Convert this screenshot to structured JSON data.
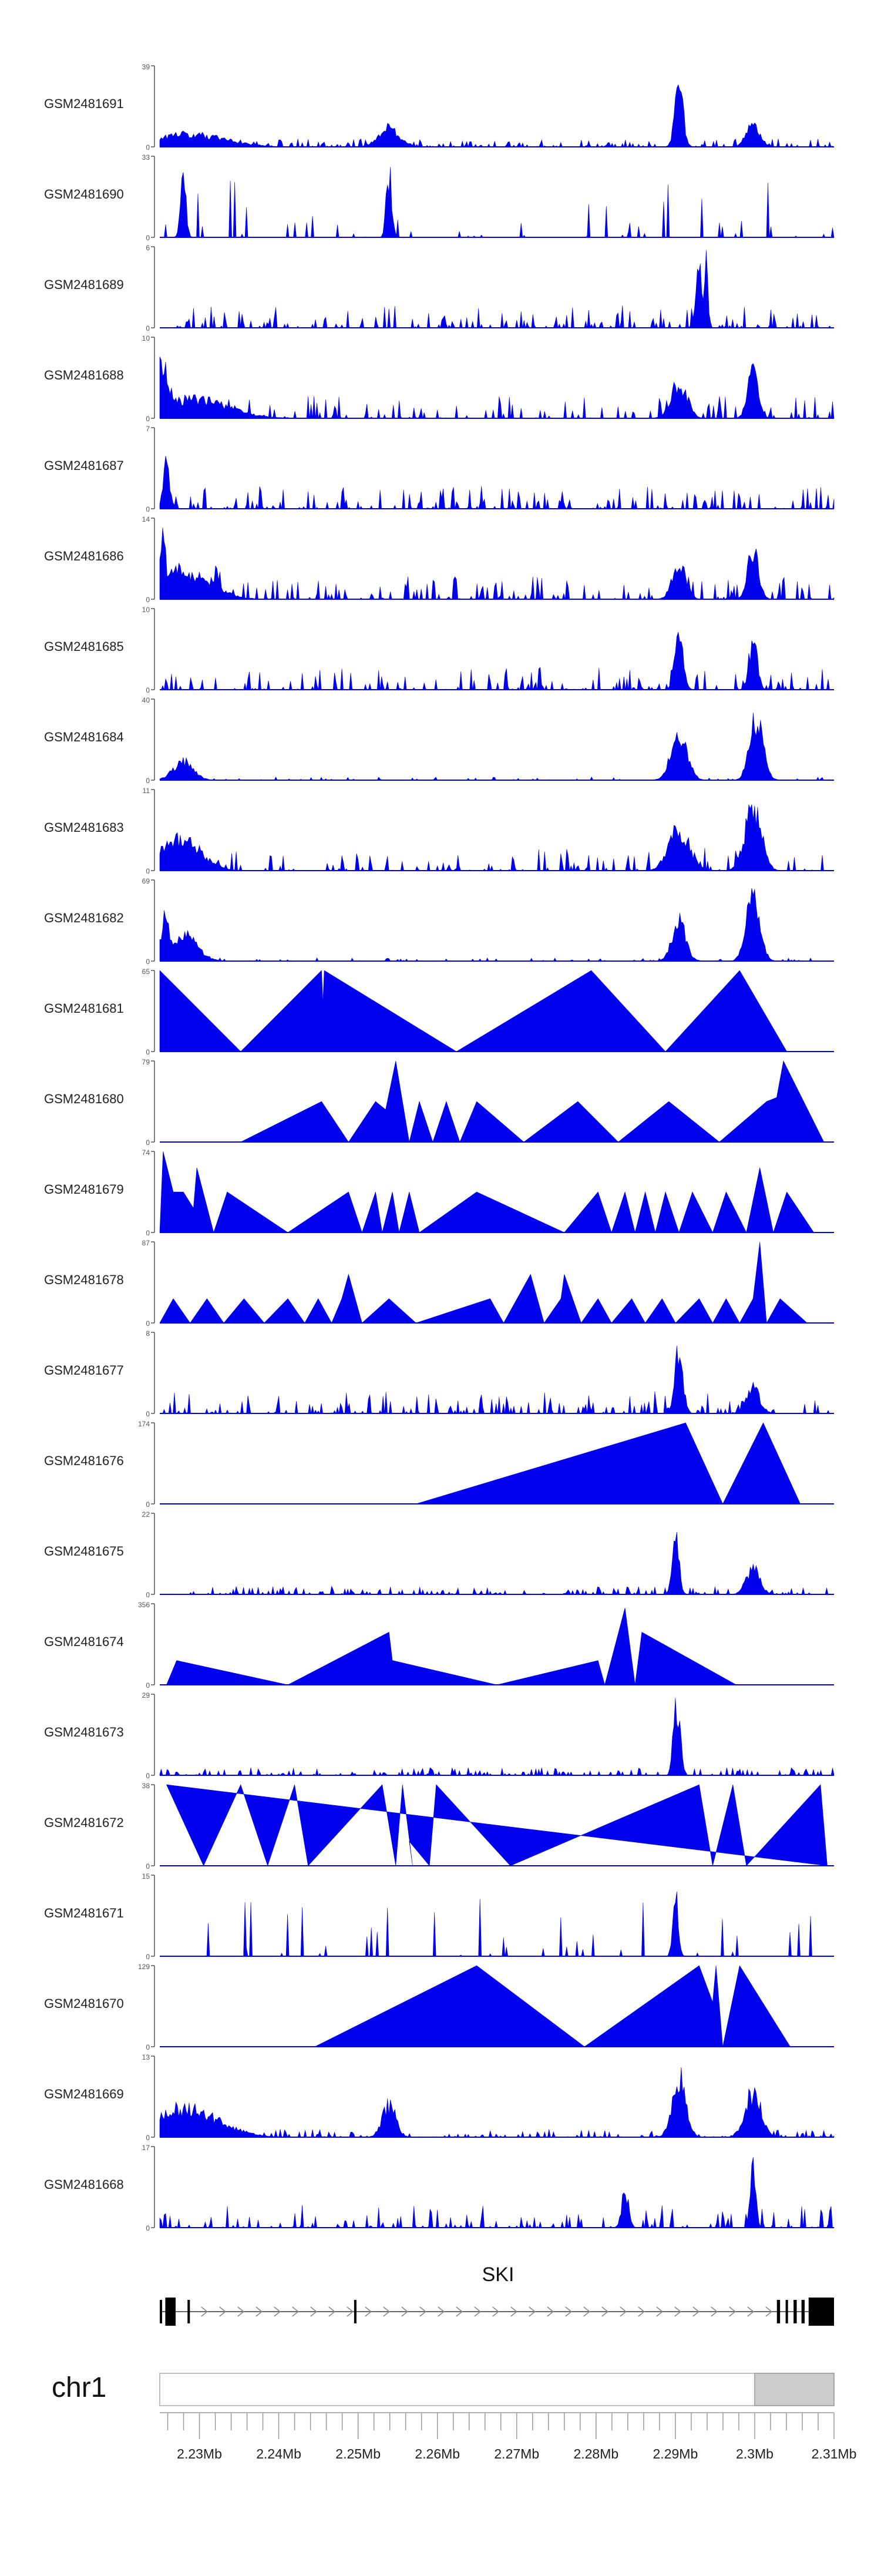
{
  "genome": {
    "chromosome": "chr1",
    "region_start_mb": 2.225,
    "region_end_mb": 2.31,
    "highlight_start_mb": 2.3,
    "highlight_end_mb": 2.31,
    "tick_labels": [
      {
        "mb": 2.23,
        "label": "2.23Mb"
      },
      {
        "mb": 2.24,
        "label": "2.24Mb"
      },
      {
        "mb": 2.25,
        "label": "2.25Mb"
      },
      {
        "mb": 2.26,
        "label": "2.26Mb"
      },
      {
        "mb": 2.27,
        "label": "2.27Mb"
      },
      {
        "mb": 2.28,
        "label": "2.28Mb"
      },
      {
        "mb": 2.29,
        "label": "2.29Mb"
      },
      {
        "mb": 2.3,
        "label": "2.3Mb"
      },
      {
        "mb": 2.31,
        "label": "2.31Mb"
      }
    ]
  },
  "gene": {
    "name": "SKI",
    "start_mb": 2.225,
    "end_mb": 2.31,
    "strand": "+",
    "exons_mb": [
      [
        2.225,
        2.2253
      ],
      [
        2.2257,
        2.227
      ],
      [
        2.2285,
        2.2288
      ],
      [
        2.2495,
        2.2497
      ],
      [
        2.3028,
        2.3032
      ],
      [
        2.3039,
        2.3042
      ],
      [
        2.3049,
        2.3053
      ],
      [
        2.3059,
        2.3063
      ],
      [
        2.3068,
        2.31
      ]
    ]
  },
  "colors": {
    "signal": "#0000ee",
    "axis": "#555555",
    "text": "#222222",
    "highlight": "#cccccc",
    "gene": "#000000"
  },
  "tracks": [
    {
      "name": "GSM2481691",
      "ymax": "39",
      "kind": "dense",
      "seed": 11,
      "peaks": [
        [
          0.045,
          0.2,
          0.05
        ],
        [
          0.34,
          0.3,
          0.015
        ],
        [
          0.77,
          1.0,
          0.006
        ],
        [
          0.88,
          0.35,
          0.01
        ]
      ]
    },
    {
      "name": "GSM2481690",
      "ymax": "33",
      "kind": "sparse",
      "seed": 12,
      "peaks": [
        [
          0.035,
          0.9,
          0.004
        ],
        [
          0.34,
          1.0,
          0.004
        ]
      ]
    },
    {
      "name": "GSM2481689",
      "ymax": "6",
      "kind": "medium",
      "seed": 13,
      "peaks": [
        [
          0.8,
          0.9,
          0.005
        ],
        [
          0.81,
          1.0,
          0.003
        ]
      ]
    },
    {
      "name": "GSM2481688",
      "ymax": "10",
      "kind": "medium",
      "seed": 14,
      "peaks": [
        [
          0.005,
          0.9,
          0.01
        ],
        [
          0.05,
          0.3,
          0.05
        ],
        [
          0.77,
          0.55,
          0.012
        ],
        [
          0.88,
          0.7,
          0.008
        ]
      ]
    },
    {
      "name": "GSM2481687",
      "ymax": "7",
      "kind": "medium",
      "seed": 15,
      "peaks": [
        [
          0.01,
          0.7,
          0.005
        ]
      ]
    },
    {
      "name": "GSM2481686",
      "ymax": "14",
      "kind": "medium",
      "seed": 16,
      "peaks": [
        [
          0.005,
          1.0,
          0.005
        ],
        [
          0.03,
          0.45,
          0.04
        ],
        [
          0.085,
          0.45,
          0.006
        ],
        [
          0.77,
          0.55,
          0.01
        ],
        [
          0.88,
          0.75,
          0.008
        ]
      ]
    },
    {
      "name": "GSM2481685",
      "ymax": "10",
      "kind": "medium",
      "seed": 17,
      "peaks": [
        [
          0.77,
          1.0,
          0.006
        ],
        [
          0.88,
          0.8,
          0.006
        ]
      ]
    },
    {
      "name": "GSM2481684",
      "ymax": "40",
      "kind": "quiet",
      "seed": 18,
      "peaks": [
        [
          0.035,
          0.3,
          0.015
        ],
        [
          0.77,
          0.75,
          0.012
        ],
        [
          0.885,
          0.95,
          0.01
        ]
      ]
    },
    {
      "name": "GSM2481683",
      "ymax": "11",
      "kind": "medium",
      "seed": 19,
      "peaks": [
        [
          0.03,
          0.5,
          0.03
        ],
        [
          0.77,
          0.65,
          0.015
        ],
        [
          0.88,
          1.0,
          0.012
        ]
      ]
    },
    {
      "name": "GSM2481682",
      "ymax": "69",
      "kind": "quiet",
      "seed": 20,
      "peaks": [
        [
          0.008,
          0.75,
          0.006
        ],
        [
          0.035,
          0.4,
          0.02
        ],
        [
          0.77,
          0.6,
          0.01
        ],
        [
          0.88,
          1.0,
          0.01
        ]
      ]
    },
    {
      "name": "GSM2481681",
      "ymax": "65",
      "kind": "polygon",
      "seed": 0,
      "points": [
        [
          0,
          0
        ],
        [
          0,
          1
        ],
        [
          0.12,
          0
        ],
        [
          0.24,
          1
        ],
        [
          0.242,
          0.6
        ],
        [
          0.244,
          1
        ],
        [
          0.44,
          0
        ],
        [
          0.64,
          1
        ],
        [
          0.75,
          0
        ],
        [
          0.86,
          1
        ],
        [
          0.93,
          0
        ]
      ]
    },
    {
      "name": "GSM2481680",
      "ymax": "79",
      "kind": "polygon",
      "seed": 0,
      "points": [
        [
          0.12,
          0
        ],
        [
          0.24,
          0.5
        ],
        [
          0.28,
          0
        ],
        [
          0.32,
          0.5
        ],
        [
          0.335,
          0.4
        ],
        [
          0.35,
          1
        ],
        [
          0.37,
          0
        ],
        [
          0.385,
          0.5
        ],
        [
          0.405,
          0
        ],
        [
          0.425,
          0.5
        ],
        [
          0.445,
          0
        ],
        [
          0.47,
          0.5
        ],
        [
          0.54,
          0
        ],
        [
          0.62,
          0.5
        ],
        [
          0.68,
          0
        ],
        [
          0.755,
          0.5
        ],
        [
          0.83,
          0
        ],
        [
          0.9,
          0.5
        ],
        [
          0.915,
          0.55
        ],
        [
          0.925,
          1
        ],
        [
          0.985,
          0
        ]
      ]
    },
    {
      "name": "GSM2481679",
      "ymax": "74",
      "kind": "polygon",
      "seed": 0,
      "points": [
        [
          0,
          0
        ],
        [
          0.005,
          1
        ],
        [
          0.02,
          0.5
        ],
        [
          0.035,
          0.5
        ],
        [
          0.05,
          0.3
        ],
        [
          0.055,
          0.8
        ],
        [
          0.08,
          0
        ],
        [
          0.1,
          0.5
        ],
        [
          0.19,
          0
        ],
        [
          0.28,
          0.5
        ],
        [
          0.3,
          0
        ],
        [
          0.32,
          0.5
        ],
        [
          0.33,
          0
        ],
        [
          0.345,
          0.5
        ],
        [
          0.355,
          0
        ],
        [
          0.37,
          0.5
        ],
        [
          0.385,
          0
        ],
        [
          0.47,
          0.5
        ],
        [
          0.6,
          0
        ],
        [
          0.65,
          0.5
        ],
        [
          0.67,
          0
        ],
        [
          0.69,
          0.5
        ],
        [
          0.705,
          0
        ],
        [
          0.72,
          0.5
        ],
        [
          0.735,
          0
        ],
        [
          0.75,
          0.5
        ],
        [
          0.77,
          0
        ],
        [
          0.79,
          0.5
        ],
        [
          0.82,
          0
        ],
        [
          0.84,
          0.5
        ],
        [
          0.87,
          0
        ],
        [
          0.89,
          0.8
        ],
        [
          0.91,
          0
        ],
        [
          0.93,
          0.5
        ],
        [
          0.97,
          0
        ]
      ]
    },
    {
      "name": "GSM2481678",
      "ymax": "87",
      "kind": "polygon",
      "seed": 0,
      "points": [
        [
          0,
          0
        ],
        [
          0.02,
          0.3
        ],
        [
          0.045,
          0
        ],
        [
          0.07,
          0.3
        ],
        [
          0.095,
          0
        ],
        [
          0.125,
          0.3
        ],
        [
          0.155,
          0
        ],
        [
          0.19,
          0.3
        ],
        [
          0.215,
          0
        ],
        [
          0.235,
          0.3
        ],
        [
          0.255,
          0
        ],
        [
          0.27,
          0.3
        ],
        [
          0.28,
          0.6
        ],
        [
          0.3,
          0
        ],
        [
          0.34,
          0.3
        ],
        [
          0.38,
          0
        ],
        [
          0.49,
          0.3
        ],
        [
          0.51,
          0
        ],
        [
          0.53,
          0.3
        ],
        [
          0.55,
          0.6
        ],
        [
          0.57,
          0
        ],
        [
          0.595,
          0.3
        ],
        [
          0.6,
          0.6
        ],
        [
          0.625,
          0
        ],
        [
          0.65,
          0.3
        ],
        [
          0.67,
          0
        ],
        [
          0.7,
          0.3
        ],
        [
          0.72,
          0
        ],
        [
          0.745,
          0.3
        ],
        [
          0.765,
          0
        ],
        [
          0.8,
          0.3
        ],
        [
          0.82,
          0
        ],
        [
          0.84,
          0.3
        ],
        [
          0.86,
          0
        ],
        [
          0.88,
          0.3
        ],
        [
          0.89,
          1
        ],
        [
          0.9,
          0
        ],
        [
          0.92,
          0.3
        ],
        [
          0.96,
          0
        ]
      ]
    },
    {
      "name": "GSM2481677",
      "ymax": "8",
      "kind": "medium",
      "seed": 21,
      "peaks": [
        [
          0.77,
          1.0,
          0.006
        ],
        [
          0.88,
          0.4,
          0.01
        ]
      ]
    },
    {
      "name": "GSM2481676",
      "ymax": "174",
      "kind": "polygon",
      "seed": 0,
      "points": [
        [
          0.38,
          0
        ],
        [
          0.78,
          1
        ],
        [
          0.835,
          0
        ],
        [
          0.895,
          1
        ],
        [
          0.95,
          0
        ]
      ]
    },
    {
      "name": "GSM2481675",
      "ymax": "22",
      "kind": "dense",
      "seed": 22,
      "peaks": [
        [
          0.765,
          0.95,
          0.005
        ],
        [
          0.88,
          0.4,
          0.01
        ]
      ]
    },
    {
      "name": "GSM2481674",
      "ymax": "356",
      "kind": "polygon",
      "seed": 0,
      "points": [
        [
          0.01,
          0
        ],
        [
          0.025,
          0.3
        ],
        [
          0.19,
          0
        ],
        [
          0.34,
          0.65
        ],
        [
          0.345,
          0.3
        ],
        [
          0.5,
          0
        ],
        [
          0.65,
          0.3
        ],
        [
          0.66,
          0
        ],
        [
          0.69,
          0.95
        ],
        [
          0.705,
          0
        ],
        [
          0.715,
          0.65
        ],
        [
          0.855,
          0
        ]
      ]
    },
    {
      "name": "GSM2481673",
      "ymax": "29",
      "kind": "dense",
      "seed": 23,
      "peaks": [
        [
          0.765,
          1.0,
          0.004
        ],
        [
          0.77,
          0.8,
          0.004
        ]
      ]
    },
    {
      "name": "GSM2481672",
      "ymax": "38",
      "kind": "polygon",
      "seed": 0,
      "points": [
        [
          0.01,
          1
        ],
        [
          0.065,
          0
        ],
        [
          0.12,
          1
        ],
        [
          0.16,
          0
        ],
        [
          0.2,
          1
        ],
        [
          0.22,
          0
        ],
        [
          0.33,
          1
        ],
        [
          0.35,
          0
        ],
        [
          0.36,
          1
        ],
        [
          0.375,
          0
        ],
        [
          0.37,
          0.3
        ],
        [
          0.4,
          0
        ],
        [
          0.41,
          1
        ],
        [
          0.52,
          0
        ],
        [
          0.8,
          1
        ],
        [
          0.82,
          0
        ],
        [
          0.85,
          1
        ],
        [
          0.87,
          0
        ],
        [
          0.98,
          1
        ],
        [
          0.99,
          0
        ]
      ]
    },
    {
      "name": "GSM2481671",
      "ymax": "15",
      "kind": "sparse",
      "seed": 24,
      "peaks": [
        [
          0.765,
          0.9,
          0.004
        ]
      ]
    },
    {
      "name": "GSM2481670",
      "ymax": "129",
      "kind": "polygon",
      "seed": 0,
      "points": [
        [
          0.23,
          0
        ],
        [
          0.47,
          1
        ],
        [
          0.63,
          0
        ],
        [
          0.8,
          1
        ],
        [
          0.82,
          0.55
        ],
        [
          0.825,
          1
        ],
        [
          0.835,
          0
        ],
        [
          0.86,
          1
        ],
        [
          0.935,
          0
        ]
      ]
    },
    {
      "name": "GSM2481669",
      "ymax": "13",
      "kind": "dense",
      "seed": 25,
      "peaks": [
        [
          0.035,
          0.45,
          0.05
        ],
        [
          0.34,
          0.5,
          0.01
        ],
        [
          0.77,
          0.95,
          0.01
        ],
        [
          0.88,
          0.7,
          0.012
        ]
      ]
    },
    {
      "name": "GSM2481668",
      "ymax": "17",
      "kind": "medium",
      "seed": 26,
      "peaks": [
        [
          0.88,
          1.0,
          0.004
        ],
        [
          0.69,
          0.6,
          0.005
        ]
      ]
    }
  ]
}
